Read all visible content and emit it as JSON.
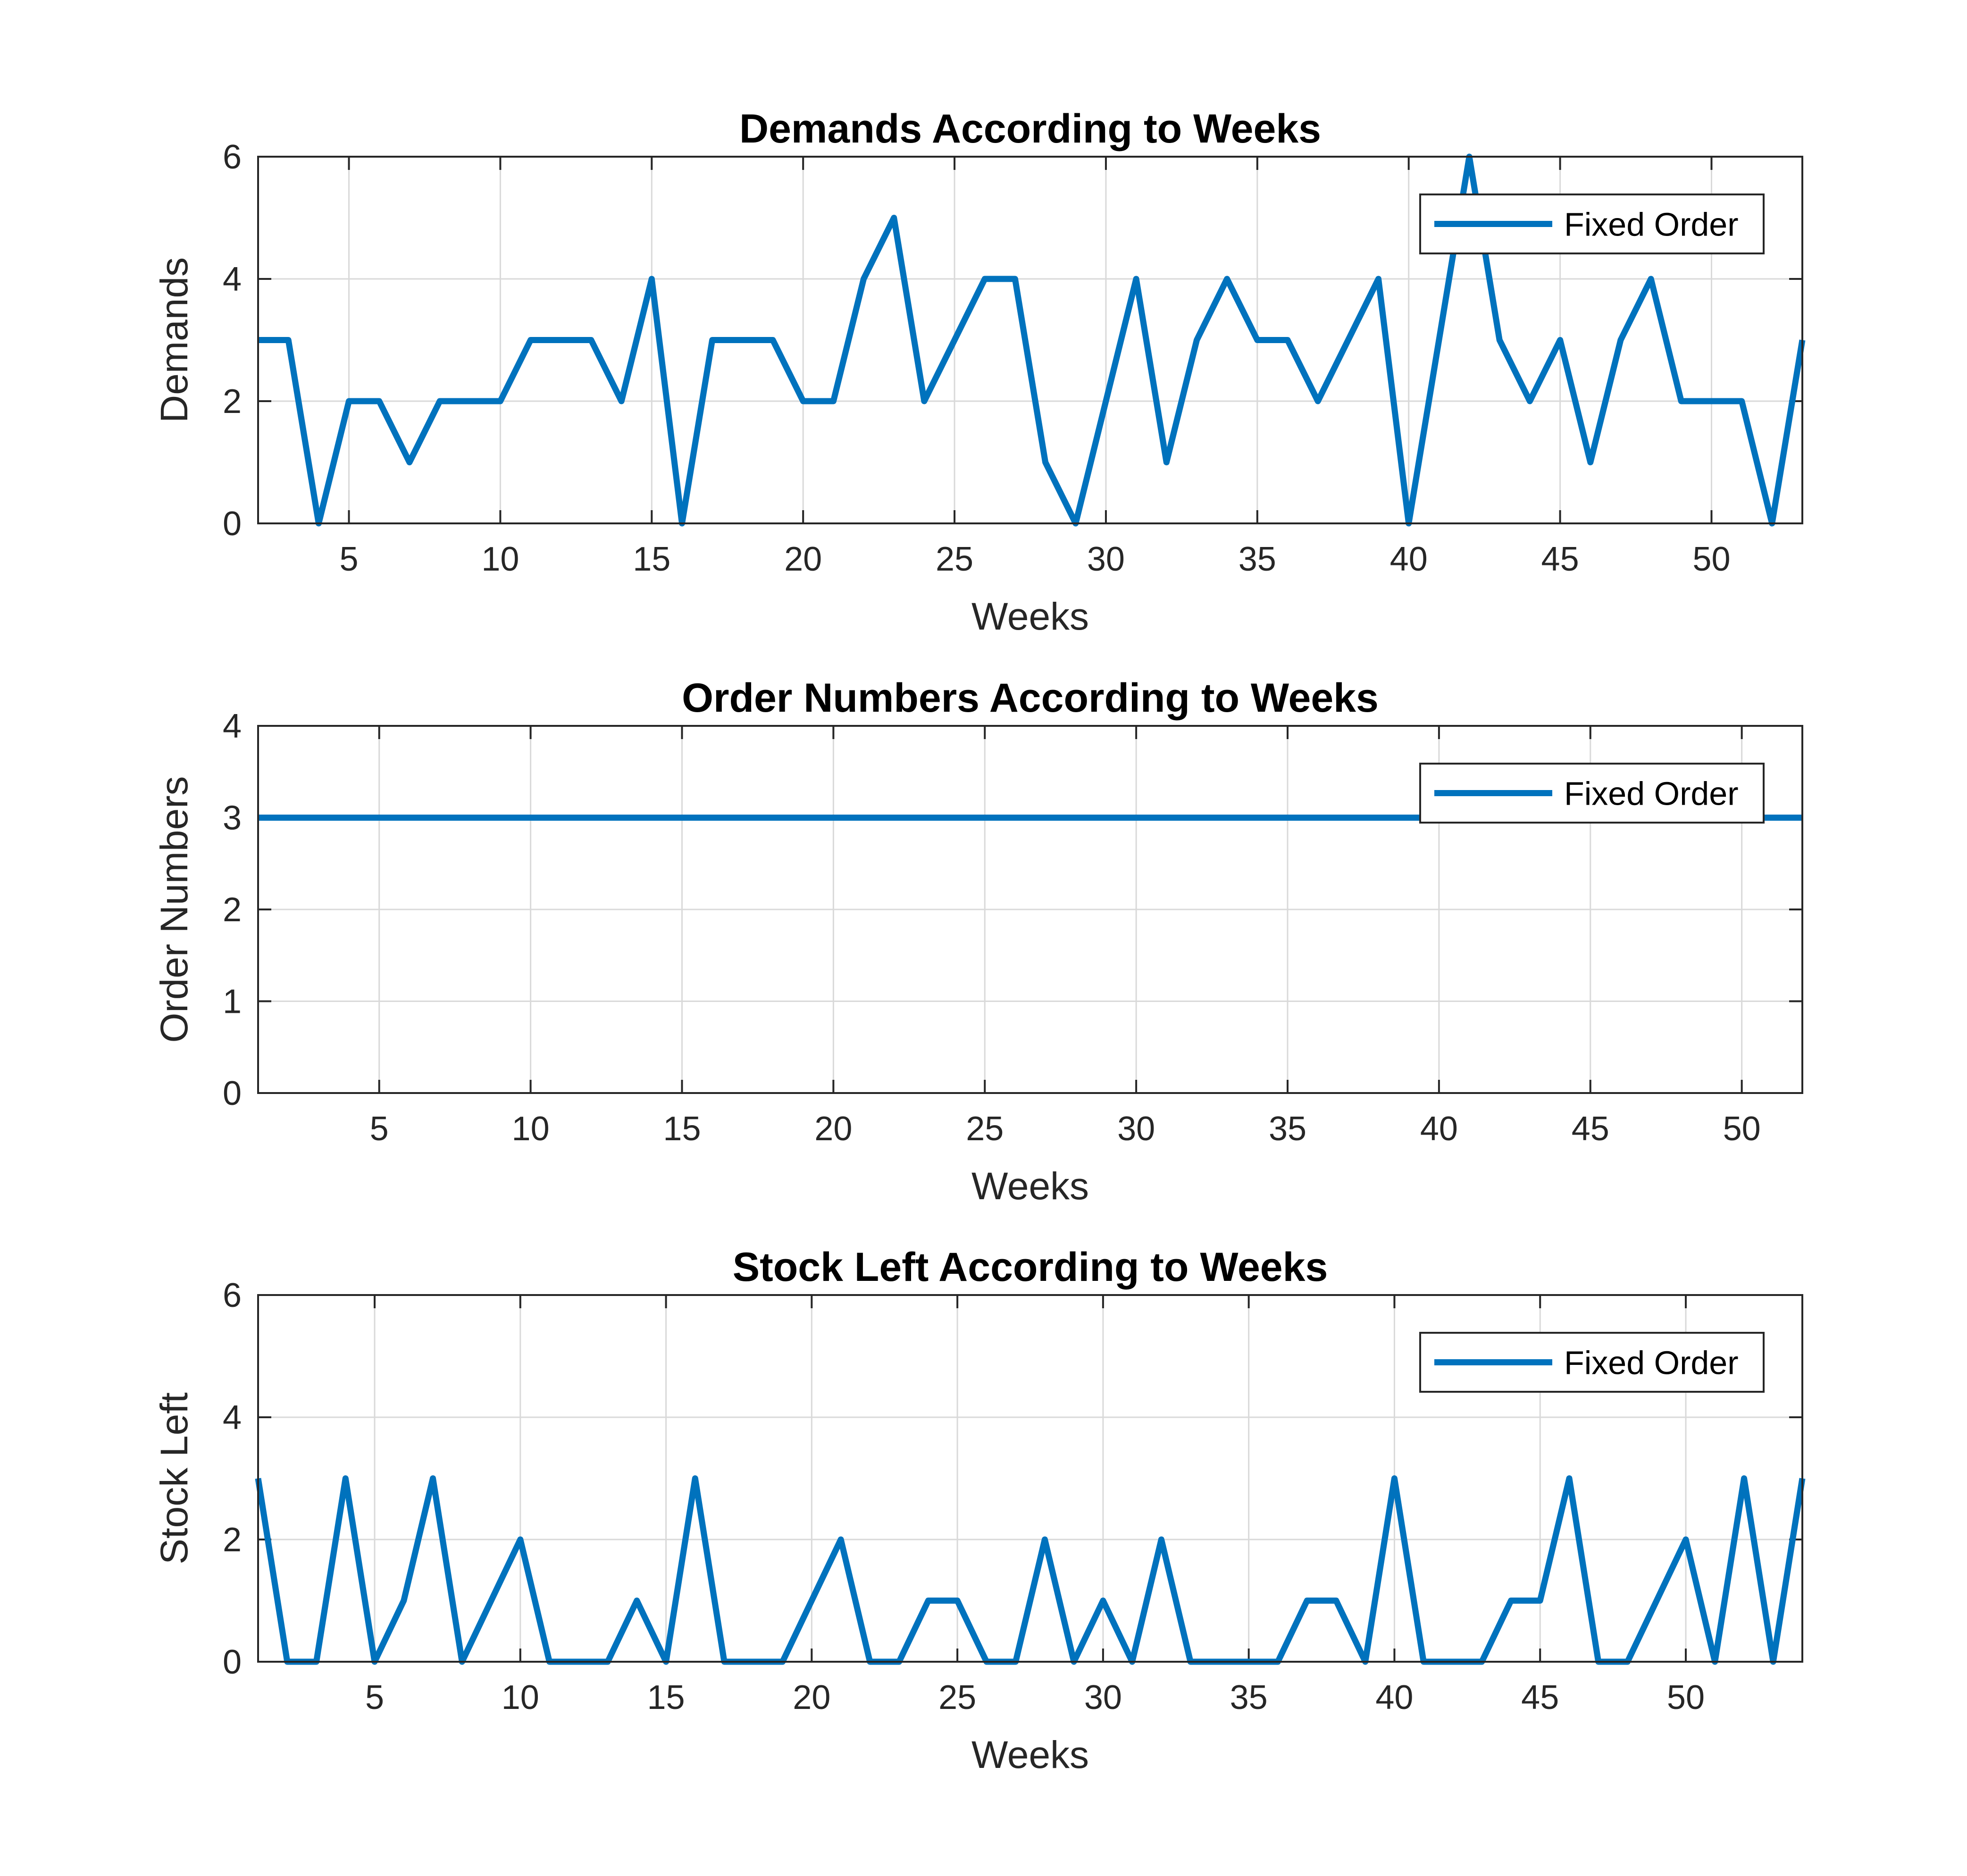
{
  "chart_data": [
    {
      "type": "line",
      "title": "Demands According to Weeks",
      "xlabel": "Weeks",
      "ylabel": "Demands",
      "xlim": [
        2,
        53
      ],
      "ylim": [
        0,
        6
      ],
      "xticks": [
        5,
        10,
        15,
        20,
        25,
        30,
        35,
        40,
        45,
        50
      ],
      "yticks": [
        0,
        2,
        4,
        6
      ],
      "grid": true,
      "legend_position": "top-right",
      "color": "#0072BD",
      "x": [
        2,
        3,
        4,
        5,
        6,
        7,
        8,
        9,
        10,
        11,
        12,
        13,
        14,
        15,
        16,
        17,
        18,
        19,
        20,
        21,
        22,
        23,
        24,
        25,
        26,
        27,
        28,
        29,
        30,
        31,
        32,
        33,
        34,
        35,
        36,
        37,
        38,
        39,
        40,
        41,
        42,
        43,
        44,
        45,
        46,
        47,
        48,
        49,
        50,
        51,
        52,
        53
      ],
      "series": [
        {
          "name": "Fixed Order",
          "values": [
            3,
            3,
            0,
            2,
            2,
            1,
            2,
            2,
            2,
            3,
            3,
            3,
            2,
            4,
            0,
            3,
            3,
            3,
            2,
            2,
            4,
            5,
            2,
            3,
            4,
            4,
            1,
            0,
            2,
            4,
            1,
            3,
            4,
            3,
            3,
            2,
            3,
            4,
            0,
            3,
            6,
            3,
            2,
            3,
            1,
            3,
            4,
            2,
            2,
            2,
            0,
            3
          ]
        }
      ]
    },
    {
      "type": "line",
      "title": "Order Numbers According to Weeks",
      "xlabel": "Weeks",
      "ylabel": "Order Numbers",
      "xlim": [
        1,
        52
      ],
      "ylim": [
        0,
        4
      ],
      "xticks": [
        5,
        10,
        15,
        20,
        25,
        30,
        35,
        40,
        45,
        50
      ],
      "yticks": [
        0,
        1,
        2,
        3,
        4
      ],
      "grid": true,
      "legend_position": "top-right",
      "color": "#0072BD",
      "x": [
        1,
        52
      ],
      "series": [
        {
          "name": "Fixed Order",
          "values": [
            3,
            3
          ]
        }
      ]
    },
    {
      "type": "line",
      "title": "Stock Left According to Weeks",
      "xlabel": "Weeks",
      "ylabel": "Stock Left",
      "xlim": [
        1,
        54
      ],
      "ylim": [
        0,
        6
      ],
      "xticks": [
        5,
        10,
        15,
        20,
        25,
        30,
        35,
        40,
        45,
        50
      ],
      "yticks": [
        0,
        2,
        4,
        6
      ],
      "grid": true,
      "legend_position": "top-right",
      "color": "#0072BD",
      "x": [
        1,
        2,
        3,
        4,
        5,
        6,
        7,
        8,
        9,
        10,
        11,
        12,
        13,
        14,
        15,
        16,
        17,
        18,
        19,
        20,
        21,
        22,
        23,
        24,
        25,
        26,
        27,
        28,
        29,
        30,
        31,
        32,
        33,
        34,
        35,
        36,
        37,
        38,
        39,
        40,
        41,
        42,
        43,
        44,
        45,
        46,
        47,
        48,
        49,
        50,
        51,
        52,
        53,
        54
      ],
      "series": [
        {
          "name": "Fixed Order",
          "values": [
            3,
            0,
            0,
            3,
            0,
            1,
            3,
            0,
            1,
            2,
            0,
            0,
            0,
            1,
            0,
            3,
            0,
            0,
            0,
            1,
            2,
            0,
            0,
            1,
            1,
            0,
            0,
            2,
            0,
            1,
            0,
            2,
            0,
            0,
            0,
            0,
            1,
            1,
            0,
            3,
            0,
            0,
            0,
            1,
            1,
            3,
            0,
            0,
            1,
            2,
            0,
            3,
            0,
            3
          ]
        }
      ]
    }
  ]
}
